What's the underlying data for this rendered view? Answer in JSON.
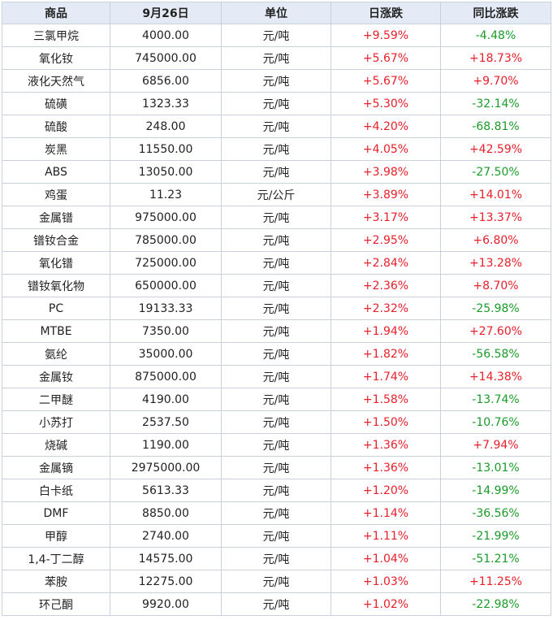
{
  "headers": {
    "name": "商品",
    "price": "9月26日",
    "unit": "单位",
    "daily": "日涨跌",
    "yoy": "同比涨跌"
  },
  "colors": {
    "up": "#e8202a",
    "down": "#1a9b2a",
    "header_bg": "#e4ebf6",
    "border": "#c9d1de"
  },
  "rows": [
    {
      "name": "三氯甲烷",
      "price": "4000.00",
      "unit": "元/吨",
      "daily": "+9.59%",
      "yoy": "-4.48%"
    },
    {
      "name": "氧化钕",
      "price": "745000.00",
      "unit": "元/吨",
      "daily": "+5.67%",
      "yoy": "+18.73%"
    },
    {
      "name": "液化天然气",
      "price": "6856.00",
      "unit": "元/吨",
      "daily": "+5.67%",
      "yoy": "+9.70%"
    },
    {
      "name": "硫磺",
      "price": "1323.33",
      "unit": "元/吨",
      "daily": "+5.30%",
      "yoy": "-32.14%"
    },
    {
      "name": "硫酸",
      "price": "248.00",
      "unit": "元/吨",
      "daily": "+4.20%",
      "yoy": "-68.81%"
    },
    {
      "name": "炭黑",
      "price": "11550.00",
      "unit": "元/吨",
      "daily": "+4.05%",
      "yoy": "+42.59%"
    },
    {
      "name": "ABS",
      "price": "13050.00",
      "unit": "元/吨",
      "daily": "+3.98%",
      "yoy": "-27.50%"
    },
    {
      "name": "鸡蛋",
      "price": "11.23",
      "unit": "元/公斤",
      "daily": "+3.89%",
      "yoy": "+14.01%"
    },
    {
      "name": "金属镨",
      "price": "975000.00",
      "unit": "元/吨",
      "daily": "+3.17%",
      "yoy": "+13.37%"
    },
    {
      "name": "镨钕合金",
      "price": "785000.00",
      "unit": "元/吨",
      "daily": "+2.95%",
      "yoy": "+6.80%"
    },
    {
      "name": "氧化镨",
      "price": "725000.00",
      "unit": "元/吨",
      "daily": "+2.84%",
      "yoy": "+13.28%"
    },
    {
      "name": "镨钕氧化物",
      "price": "650000.00",
      "unit": "元/吨",
      "daily": "+2.36%",
      "yoy": "+8.70%"
    },
    {
      "name": "PC",
      "price": "19133.33",
      "unit": "元/吨",
      "daily": "+2.32%",
      "yoy": "-25.98%"
    },
    {
      "name": "MTBE",
      "price": "7350.00",
      "unit": "元/吨",
      "daily": "+1.94%",
      "yoy": "+27.60%"
    },
    {
      "name": "氨纶",
      "price": "35000.00",
      "unit": "元/吨",
      "daily": "+1.82%",
      "yoy": "-56.58%"
    },
    {
      "name": "金属钕",
      "price": "875000.00",
      "unit": "元/吨",
      "daily": "+1.74%",
      "yoy": "+14.38%"
    },
    {
      "name": "二甲醚",
      "price": "4190.00",
      "unit": "元/吨",
      "daily": "+1.58%",
      "yoy": "-13.74%"
    },
    {
      "name": "小苏打",
      "price": "2537.50",
      "unit": "元/吨",
      "daily": "+1.50%",
      "yoy": "-10.76%"
    },
    {
      "name": "烧碱",
      "price": "1190.00",
      "unit": "元/吨",
      "daily": "+1.36%",
      "yoy": "+7.94%"
    },
    {
      "name": "金属镝",
      "price": "2975000.00",
      "unit": "元/吨",
      "daily": "+1.36%",
      "yoy": "-13.01%"
    },
    {
      "name": "白卡纸",
      "price": "5613.33",
      "unit": "元/吨",
      "daily": "+1.20%",
      "yoy": "-14.99%"
    },
    {
      "name": "DMF",
      "price": "8850.00",
      "unit": "元/吨",
      "daily": "+1.14%",
      "yoy": "-36.56%"
    },
    {
      "name": "甲醇",
      "price": "2740.00",
      "unit": "元/吨",
      "daily": "+1.11%",
      "yoy": "-21.99%"
    },
    {
      "name": "1,4-丁二醇",
      "price": "14575.00",
      "unit": "元/吨",
      "daily": "+1.04%",
      "yoy": "-51.21%"
    },
    {
      "name": "苯胺",
      "price": "12275.00",
      "unit": "元/吨",
      "daily": "+1.03%",
      "yoy": "+11.25%"
    },
    {
      "name": "环己酮",
      "price": "9920.00",
      "unit": "元/吨",
      "daily": "+1.02%",
      "yoy": "-22.98%"
    }
  ]
}
